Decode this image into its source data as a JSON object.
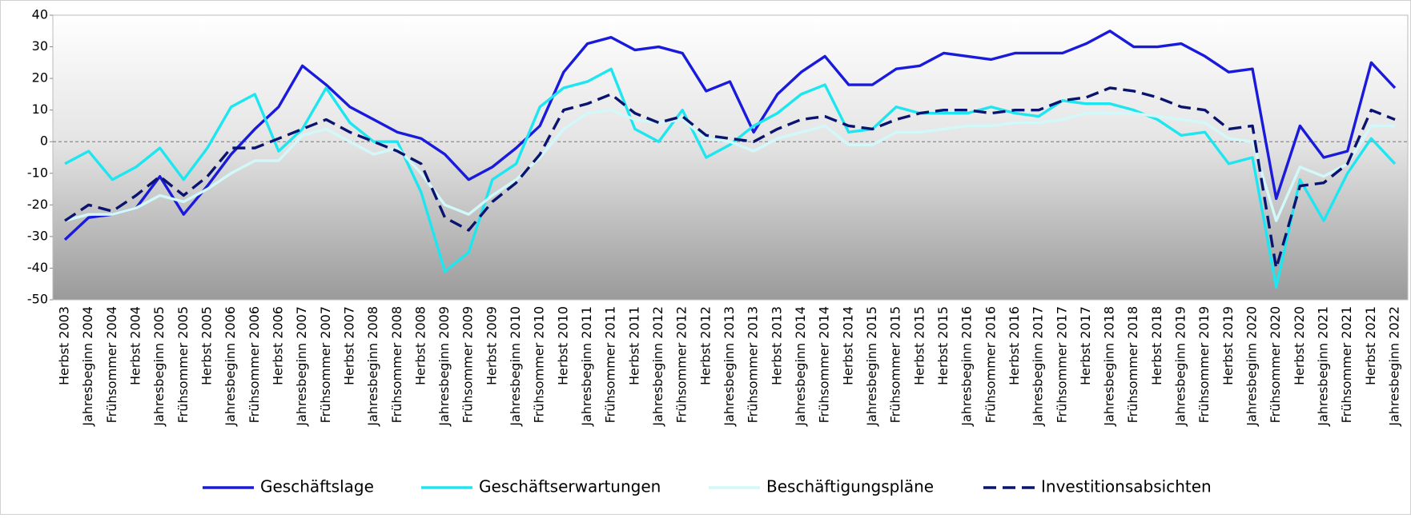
{
  "chart_data": {
    "type": "line",
    "categories": [
      "Herbst 2003",
      "Jahresbeginn 2004",
      "Frühsommer 2004",
      "Herbst 2004",
      "Jahresbeginn 2005",
      "Frühsommer 2005",
      "Herbst 2005",
      "Jahresbeginn 2006",
      "Frühsommer 2006",
      "Herbst 2006",
      "Jahresbeginn 2007",
      "Frühsommer 2007",
      "Herbst 2007",
      "Jahresbeginn 2008",
      "Frühsommer 2008",
      "Herbst 2008",
      "Jahresbeginn 2009",
      "Frühsommer 2009",
      "Herbst 2009",
      "Jahresbeginn 2010",
      "Frühsommer 2010",
      "Herbst 2010",
      "Jahresbeginn 2011",
      "Frühsommer 2011",
      "Herbst 2011",
      "Jahresbeginn 2012",
      "Frühsommer 2012",
      "Herbst 2012",
      "Jahresbeginn 2013",
      "Frühsommer 2013",
      "Herbst 2013",
      "Jahresbeginn 2014",
      "Frühsommer 2014",
      "Herbst 2014",
      "Jahresbeginn 2015",
      "Frühsommer 2015",
      "Herbst 2015",
      "Herbst 2015",
      "Jahresbeginn 2016",
      "Frühsommer 2016",
      "Herbst 2016",
      "Jahresbeginn 2017",
      "Frühsommer 2017",
      "Herbst 2017",
      "Jahresbeginn 2018",
      "Frühsommer 2018",
      "Herbst 2018",
      "Jahresbeginn 2019",
      "Frühsommer 2019",
      "Herbst 2019",
      "Jahresbeginn 2020",
      "Frühsommer 2020",
      "Herbst 2020",
      "Jahresbeginn 2021",
      "Frühsommer 2021",
      "Herbst 2021",
      "Jahresbeginn 2022"
    ],
    "series": [
      {
        "name": "Geschäftslage",
        "color": "#1a1adc",
        "dash": false,
        "values": [
          -31,
          -24,
          -23,
          -21,
          -11,
          -23,
          -14,
          -4,
          4,
          11,
          24,
          18,
          11,
          7,
          3,
          1,
          -4,
          -12,
          -8,
          -2,
          5,
          22,
          31,
          33,
          29,
          30,
          28,
          16,
          19,
          3,
          15,
          22,
          27,
          18,
          18,
          23,
          24,
          28,
          27,
          26,
          28,
          28,
          28,
          31,
          35,
          30,
          30,
          31,
          27,
          22,
          23,
          -18,
          5,
          -5,
          -3,
          25,
          17
        ]
      },
      {
        "name": "Geschäftserwartungen",
        "color": "#1ee6f0",
        "dash": false,
        "values": [
          -7,
          -3,
          -12,
          -8,
          -2,
          -12,
          -2,
          11,
          15,
          -3,
          4,
          17,
          6,
          0,
          0,
          -16,
          -41,
          -35,
          -12,
          -7,
          11,
          17,
          19,
          23,
          4,
          0,
          10,
          -5,
          -1,
          5,
          9,
          15,
          18,
          3,
          4,
          11,
          9,
          9,
          9,
          11,
          9,
          8,
          13,
          12,
          12,
          10,
          7,
          2,
          3,
          -7,
          -5,
          -46,
          -12,
          -25,
          -10,
          1,
          -7
        ]
      },
      {
        "name": "Beschäftigungspläne",
        "color": "#d2f8fa",
        "dash": false,
        "values": [
          -25,
          -23,
          -23,
          -21,
          -17,
          -19,
          -15,
          -10,
          -6,
          -6,
          2,
          4,
          0,
          -4,
          -2,
          -10,
          -20,
          -23,
          -17,
          -12,
          -5,
          4,
          9,
          10,
          7,
          6,
          7,
          1,
          0,
          -3,
          1,
          3,
          5,
          -1,
          -1,
          3,
          3,
          4,
          5,
          5,
          6,
          6,
          7,
          9,
          9,
          9,
          8,
          7,
          6,
          1,
          0,
          -25,
          -8,
          -11,
          -7,
          5,
          5
        ]
      },
      {
        "name": "Investitionsabsichten",
        "color": "#0a1470",
        "dash": true,
        "values": [
          -25,
          -20,
          -22,
          -17,
          -11,
          -17,
          -11,
          -2,
          -2,
          1,
          4,
          7,
          3,
          0,
          -3,
          -7,
          -24,
          -28,
          -19,
          -13,
          -4,
          10,
          12,
          15,
          9,
          6,
          8,
          2,
          1,
          0,
          4,
          7,
          8,
          5,
          4,
          7,
          9,
          10,
          10,
          9,
          10,
          10,
          13,
          14,
          17,
          16,
          14,
          11,
          10,
          4,
          5,
          -40,
          -14,
          -13,
          -7,
          10,
          7
        ]
      }
    ],
    "ylim": [
      -50,
      40
    ],
    "yticks": [
      -50,
      -40,
      -30,
      -20,
      -10,
      0,
      10,
      20,
      30,
      40
    ],
    "zero_line": true,
    "legend": "bottom"
  }
}
